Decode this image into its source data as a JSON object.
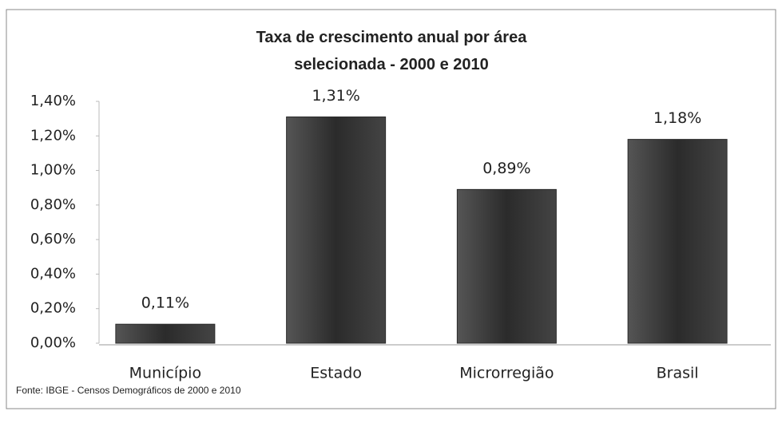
{
  "chart_data": {
    "type": "bar",
    "title": "Taxa de crescimento anual por área selecionada - 2000 e 2010",
    "categories": [
      "Município",
      "Estado",
      "Microrregião",
      "Brasil"
    ],
    "values": [
      0.11,
      1.31,
      0.89,
      1.18
    ],
    "value_labels": [
      "0,11%",
      "1,31%",
      "0,89%",
      "1,18%"
    ],
    "color": "#2b2b2b",
    "ylim": [
      0,
      1.4
    ],
    "yticks": [
      {
        "value": 0,
        "label": "0,00%"
      },
      {
        "value": 0.2,
        "label": "0,20%"
      },
      {
        "value": 0.4,
        "label": "0,40%"
      },
      {
        "value": 0.6,
        "label": "0,60%"
      },
      {
        "value": 0.8,
        "label": "0,80%"
      },
      {
        "value": 1.0,
        "label": "1,00%"
      },
      {
        "value": 1.2,
        "label": "1,20%"
      },
      {
        "value": 1.4,
        "label": "1,40%"
      }
    ],
    "source": "Fonte: IBGE - Censos Demográficos de 2000 e 2010"
  }
}
